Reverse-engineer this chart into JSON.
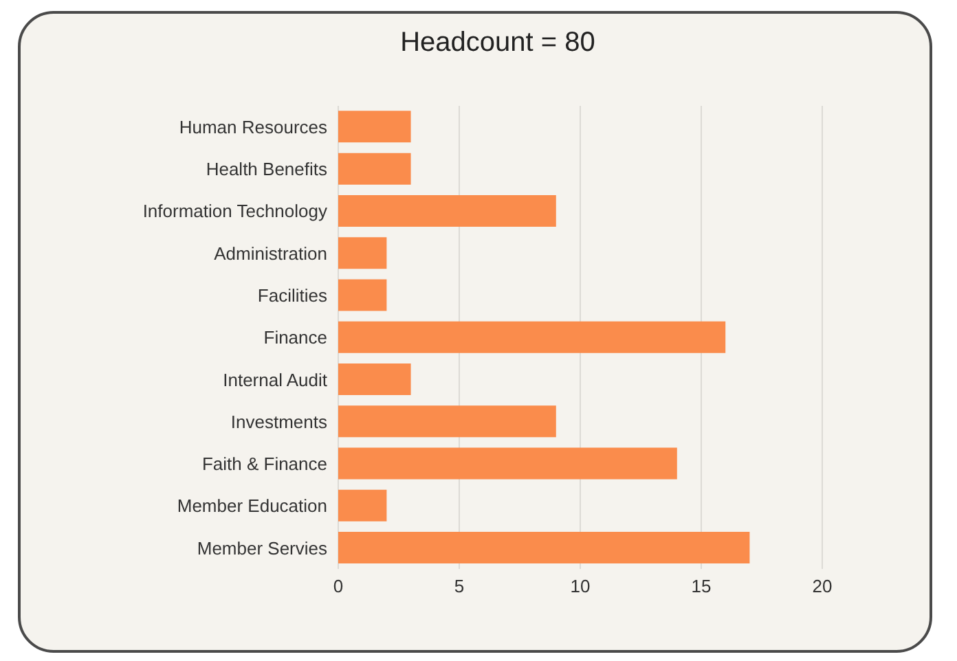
{
  "chart_data": {
    "type": "bar",
    "title": "Headcount = 80",
    "orientation": "horizontal",
    "categories": [
      "Human Resources",
      "Health Benefits",
      "Information Technology",
      "Administration",
      "Facilities",
      "Finance",
      "Internal Audit",
      "Investments",
      "Faith & Finance",
      "Member Education",
      "Member Servies"
    ],
    "values": [
      3,
      3,
      9,
      2,
      2,
      16,
      3,
      9,
      14,
      2,
      17
    ],
    "color": "#fa8c4c",
    "xlim": [
      0,
      20
    ],
    "xticks": [
      0,
      5,
      10,
      15,
      20
    ],
    "grid": "x"
  }
}
